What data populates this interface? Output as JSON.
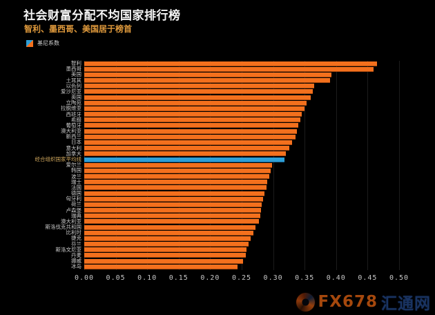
{
  "header": {
    "title": "社会财富分配不均国家排行榜",
    "subtitle": "智利、墨西哥、美国居于榜首"
  },
  "legend": {
    "label": "基尼系数",
    "swatch_colors": {
      "blue": "#2e9fd6",
      "orange": "#f3701d"
    }
  },
  "colors": {
    "background": "#000000",
    "title_text": "#f5f5f5",
    "subtitle_text": "#e09a3c",
    "bar_orange": "#f3701d",
    "bar_blue": "#2e9fd6",
    "axis_text": "#c8c8c8",
    "category_text": "#c9c9c9",
    "highlight_label_text": "#d2a95e",
    "gridline": "#1c1c1c"
  },
  "watermark": {
    "logo": "fx678-flame-logo",
    "brand": "FX678",
    "site": "汇通网"
  },
  "chart_data": {
    "type": "bar",
    "orientation": "horizontal",
    "title": "社会财富分配不均国家排行榜",
    "subtitle": "智利、墨西哥、美国居于榜首",
    "series_name": "基尼系数",
    "xlabel": "",
    "ylabel": "",
    "xlim": [
      0,
      0.5
    ],
    "x_ticks": [
      "0.00",
      "0.05",
      "0.10",
      "0.15",
      "0.20",
      "0.25",
      "0.30",
      "0.35",
      "0.40",
      "0.45",
      "0.50"
    ],
    "grid": "vertical-faint",
    "legend_position": "top-left",
    "categories": [
      "智利",
      "墨西哥",
      "美国",
      "土耳其",
      "以色列",
      "爱沙尼亚",
      "英国",
      "立陶宛",
      "拉脱维亚",
      "西班牙",
      "希腊",
      "葡萄牙",
      "澳大利亚",
      "新西兰",
      "日本",
      "意大利",
      "加拿大",
      "经合组织国家平均线",
      "爱尔兰",
      "韩国",
      "波兰",
      "瑞士",
      "法国",
      "德国",
      "匈牙利",
      "荷兰",
      "卢森堡",
      "瑞典",
      "澳大利亚",
      "斯洛伐克共和国",
      "比利时",
      "捷克",
      "芬兰",
      "斯洛文尼亚",
      "丹麦",
      "挪威",
      "冰岛"
    ],
    "values": [
      0.465,
      0.459,
      0.393,
      0.39,
      0.365,
      0.363,
      0.36,
      0.353,
      0.35,
      0.345,
      0.343,
      0.34,
      0.338,
      0.335,
      0.33,
      0.326,
      0.32,
      0.318,
      0.298,
      0.296,
      0.294,
      0.291,
      0.289,
      0.286,
      0.284,
      0.282,
      0.281,
      0.28,
      0.277,
      0.272,
      0.269,
      0.264,
      0.261,
      0.258,
      0.257,
      0.252,
      0.243
    ],
    "highlight": {
      "index": 17,
      "category": "经合组织国家平均线",
      "bar_color": "#2e9fd6",
      "label_color": "#d2a95e"
    }
  }
}
